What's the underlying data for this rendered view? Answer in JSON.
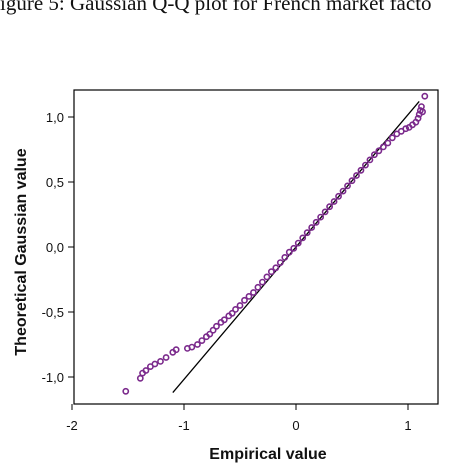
{
  "caption": "igure 5: Gaussian Q-Q plot for French market facto",
  "chart_data": {
    "type": "scatter",
    "title": "",
    "xlabel": "Empirical value",
    "ylabel": "Theoretical Gaussian value",
    "xlim": [
      -2,
      1.5
    ],
    "ylim": [
      -1.2,
      1.2
    ],
    "x_ticks": [
      -2,
      -1,
      0,
      1
    ],
    "x_tick_labels": [
      "-2",
      "-1",
      "0",
      "1"
    ],
    "y_ticks": [
      -1.0,
      -0.5,
      0.0,
      0.5,
      1.0
    ],
    "y_tick_labels": [
      "-1,0",
      "-0,5",
      "0,0",
      "0,5",
      "1,0"
    ],
    "grid": false,
    "marker_color": "#7b2a8c",
    "reference_line": {
      "x": [
        -1.1,
        1.1
      ],
      "y": [
        -1.12,
        1.12
      ],
      "color": "#000000"
    },
    "series": [
      {
        "x": [
          -1.52,
          -1.39,
          -1.37,
          -1.34,
          -1.3,
          -1.26,
          -1.21,
          -1.16,
          -1.1,
          -1.07,
          -0.97,
          -0.93,
          -0.88,
          -0.84,
          -0.8,
          -0.77,
          -0.74,
          -0.71,
          -0.67,
          -0.64,
          -0.6,
          -0.57,
          -0.54,
          -0.5,
          -0.46,
          -0.42,
          -0.38,
          -0.34,
          -0.3,
          -0.26,
          -0.22,
          -0.18,
          -0.14,
          -0.1,
          -0.06,
          -0.02,
          0.02,
          0.06,
          0.1,
          0.14,
          0.18,
          0.22,
          0.26,
          0.3,
          0.34,
          0.38,
          0.42,
          0.46,
          0.5,
          0.54,
          0.58,
          0.62,
          0.66,
          0.7,
          0.74,
          0.78,
          0.82,
          0.86,
          0.9,
          0.94,
          0.98,
          1.01,
          1.04,
          1.07,
          1.09,
          1.1,
          1.11,
          1.12,
          1.13,
          1.15
        ],
        "y": [
          -1.11,
          -1.01,
          -0.97,
          -0.95,
          -0.92,
          -0.9,
          -0.88,
          -0.85,
          -0.81,
          -0.79,
          -0.78,
          -0.77,
          -0.75,
          -0.72,
          -0.69,
          -0.67,
          -0.64,
          -0.61,
          -0.58,
          -0.56,
          -0.53,
          -0.51,
          -0.48,
          -0.45,
          -0.41,
          -0.38,
          -0.35,
          -0.31,
          -0.27,
          -0.23,
          -0.19,
          -0.16,
          -0.12,
          -0.08,
          -0.04,
          -0.01,
          0.03,
          0.07,
          0.11,
          0.15,
          0.19,
          0.23,
          0.27,
          0.31,
          0.35,
          0.39,
          0.43,
          0.47,
          0.51,
          0.55,
          0.59,
          0.63,
          0.67,
          0.71,
          0.74,
          0.77,
          0.8,
          0.84,
          0.87,
          0.89,
          0.91,
          0.92,
          0.94,
          0.96,
          0.99,
          1.02,
          1.05,
          1.08,
          1.04,
          1.16
        ]
      }
    ]
  }
}
